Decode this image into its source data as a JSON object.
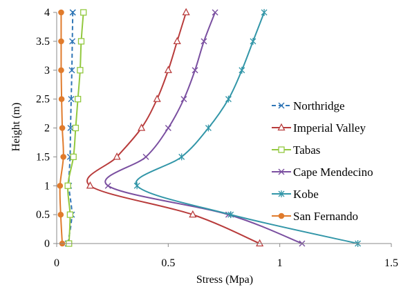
{
  "chart_data": {
    "type": "line",
    "title": "",
    "xlabel": "Stress (Mpa)",
    "ylabel": "Height (m)",
    "xlim": [
      0,
      1.5
    ],
    "ylim": [
      0,
      4
    ],
    "xticks": [
      0,
      0.5,
      1,
      1.5
    ],
    "xtick_labels": [
      "0",
      "0.5",
      "1",
      "1.5"
    ],
    "yticks": [
      0,
      0.5,
      1,
      1.5,
      2,
      2.5,
      3,
      3.5,
      4
    ],
    "ytick_labels": [
      "0",
      "0.5",
      "1",
      "1.5",
      "2",
      "2.5",
      "3",
      "3.5",
      "4"
    ],
    "grid": false,
    "legend_position": "right",
    "series": [
      {
        "name": "Northridge",
        "color": "#2E75B6",
        "dash": "dashed",
        "marker": "x",
        "x": [
          0.05,
          0.068,
          0.055,
          0.06,
          0.062,
          0.065,
          0.068,
          0.07,
          0.072,
          0.072
        ],
        "y": [
          0,
          0.5,
          1,
          1.5,
          2,
          2.5,
          3,
          3.5,
          4,
          4.0
        ]
      },
      {
        "name": "Imperial Valley",
        "color": "#B83B3B",
        "dash": "solid",
        "marker": "triangle",
        "x": [
          0.91,
          0.61,
          0.15,
          0.27,
          0.38,
          0.45,
          0.5,
          0.54,
          0.58
        ],
        "y": [
          0,
          0.5,
          1,
          1.5,
          2,
          2.5,
          3,
          3.5,
          4
        ]
      },
      {
        "name": "Tabas",
        "color": "#92C83E",
        "dash": "solid",
        "marker": "square",
        "x": [
          0.055,
          0.06,
          0.05,
          0.075,
          0.085,
          0.095,
          0.105,
          0.11,
          0.12
        ],
        "y": [
          0,
          0.5,
          1,
          1.5,
          2,
          2.5,
          3,
          3.5,
          4
        ]
      },
      {
        "name": "Cape Mendecino",
        "color": "#7A4FA0",
        "dash": "solid",
        "marker": "x",
        "x": [
          1.1,
          0.77,
          0.23,
          0.4,
          0.5,
          0.57,
          0.62,
          0.66,
          0.71
        ],
        "y": [
          0,
          0.5,
          1,
          1.5,
          2,
          2.5,
          3,
          3.5,
          4
        ]
      },
      {
        "name": "Kobe",
        "color": "#3296A8",
        "dash": "solid",
        "marker": "asterisk",
        "x": [
          1.35,
          0.78,
          0.36,
          0.56,
          0.68,
          0.77,
          0.83,
          0.88,
          0.93
        ],
        "y": [
          0,
          0.5,
          1,
          1.5,
          2,
          2.5,
          3,
          3.5,
          4
        ]
      },
      {
        "name": "San Fernando",
        "color": "#E07B2C",
        "dash": "solid",
        "marker": "circle",
        "x": [
          0.025,
          0.018,
          0.015,
          0.03,
          0.025,
          0.022,
          0.02,
          0.02,
          0.02
        ],
        "y": [
          0,
          0.5,
          1,
          1.5,
          2,
          2.5,
          3,
          3.5,
          4
        ]
      }
    ]
  }
}
